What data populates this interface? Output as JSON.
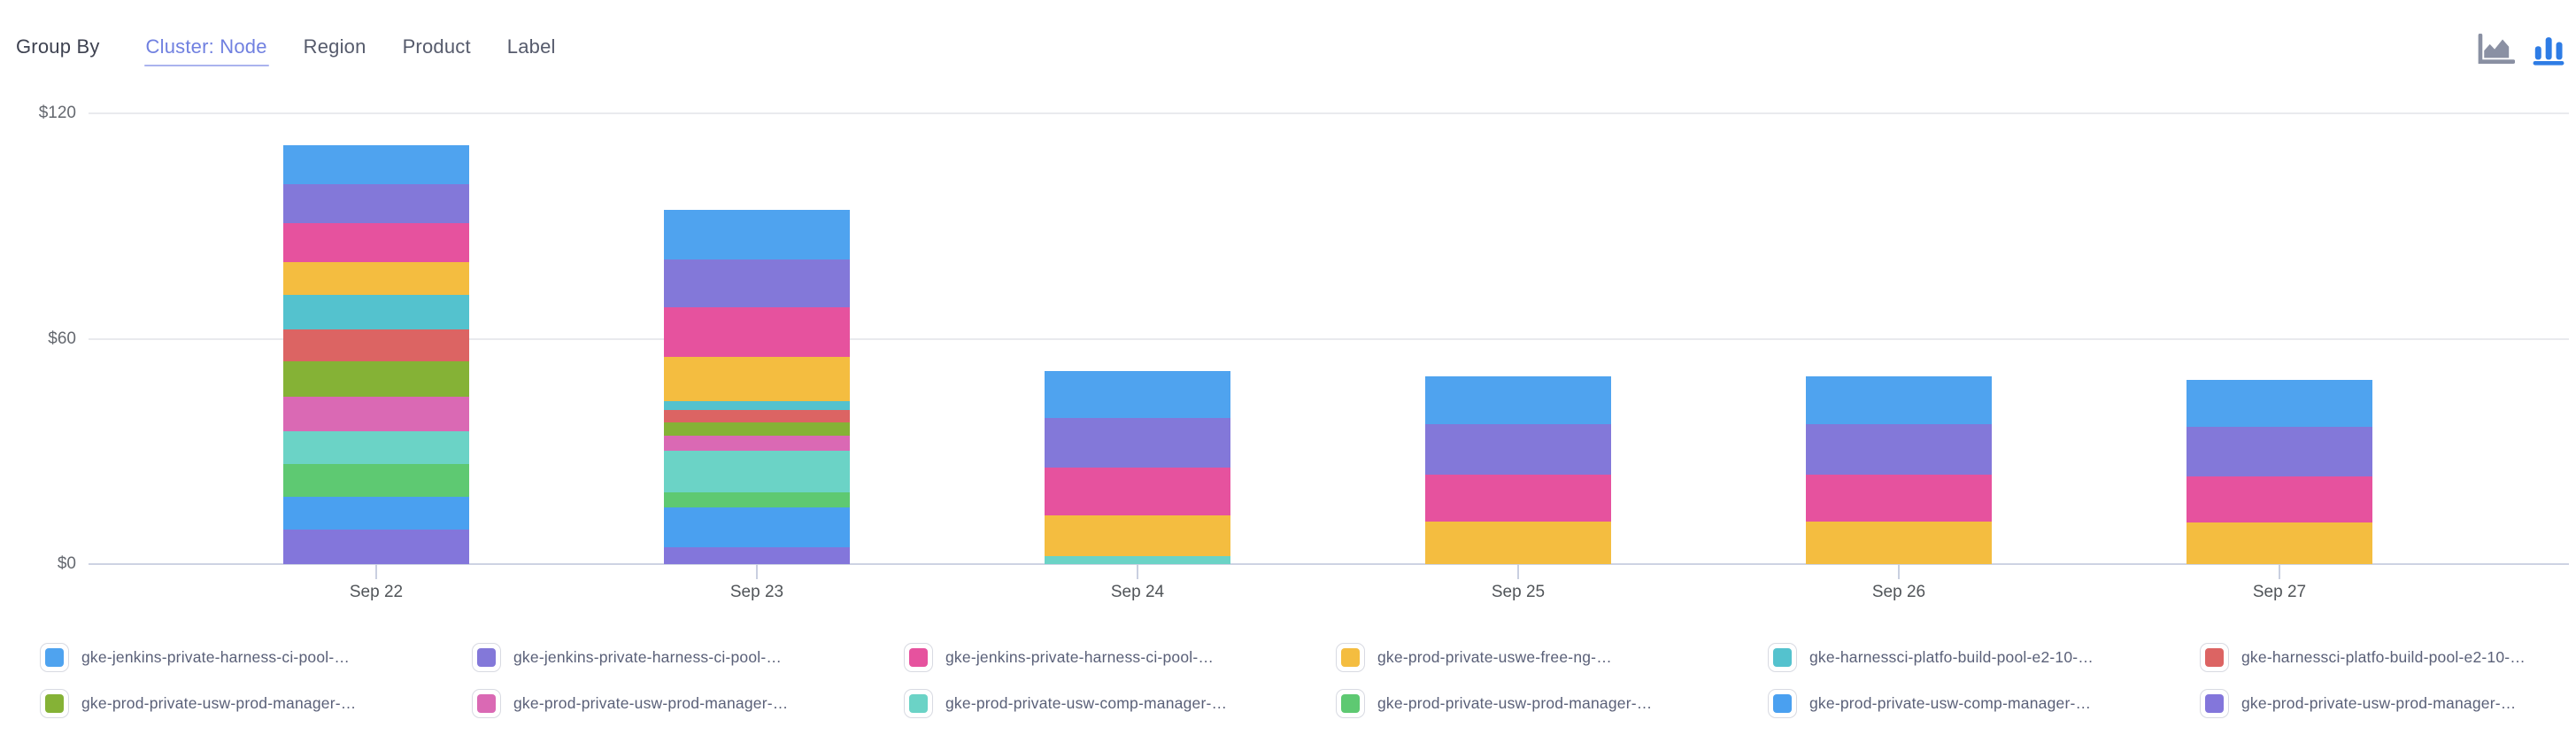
{
  "header": {
    "group_by_label": "Group By",
    "tabs": [
      {
        "label": "Cluster: Node",
        "active": true
      },
      {
        "label": "Region",
        "active": false
      },
      {
        "label": "Product",
        "active": false
      },
      {
        "label": "Label",
        "active": false
      }
    ],
    "chart_type_icons": [
      {
        "name": "area-chart-icon",
        "active": false,
        "color": "#8a90a3"
      },
      {
        "name": "bar-chart-icon",
        "active": true,
        "color": "#2e7ce5"
      }
    ]
  },
  "colors": {
    "active_tab": "#7080e0",
    "active_tab_underline": "#aab3ee",
    "inactive_tab_text": "#565b6c",
    "group_by_text": "#3e4250",
    "y_label_text": "#64686f",
    "x_label_text": "#515559",
    "legend_text": "#5a6078",
    "gridline": "#e9eaee",
    "axis_line": "#cdd3e3"
  },
  "chart_data": {
    "type": "bar",
    "stacked": true,
    "grid": "horizontal",
    "legend_position": "bottom",
    "currency_prefix": "$",
    "categories": [
      "Sep 22",
      "Sep 23",
      "Sep 24",
      "Sep 25",
      "Sep 26",
      "Sep 27"
    ],
    "y_ticks": [
      0,
      60,
      120
    ],
    "y_tick_labels": [
      "$0",
      "$60",
      "$120"
    ],
    "ylim": [
      0,
      120
    ],
    "series": [
      {
        "name": "gke-jenkins-private-harness-ci-pool-…",
        "color": "#4fa3ef",
        "values": [
          10.4,
          13.2,
          12.7,
          12.7,
          12.7,
          12.5
        ]
      },
      {
        "name": "gke-jenkins-private-harness-ci-pool-…",
        "color": "#8378d9",
        "values": [
          10.4,
          12.7,
          13.2,
          13.4,
          13.4,
          13.2
        ]
      },
      {
        "name": "gke-jenkins-private-harness-ci-pool-…",
        "color": "#e6529e",
        "values": [
          10.4,
          13.2,
          12.7,
          12.5,
          12.5,
          12.3
        ]
      },
      {
        "name": "gke-prod-private-uswe-free-ng-…",
        "color": "#f4bd40",
        "values": [
          8.7,
          11.8,
          10.8,
          11.3,
          11.3,
          11.1
        ]
      },
      {
        "name": "gke-harnessci-platfo-build-pool-e2-10-…",
        "color": "#54c2ce",
        "values": [
          9.2,
          2.4,
          0,
          0,
          0,
          0
        ]
      },
      {
        "name": "gke-harnessci-platfo-build-pool-e2-10-…",
        "color": "#dc6463",
        "values": [
          8.5,
          3.3,
          0,
          0,
          0,
          0
        ]
      },
      {
        "name": "gke-prod-private-usw-prod-manager-…",
        "color": "#85b236",
        "values": [
          9.4,
          3.5,
          0,
          0,
          0,
          0
        ]
      },
      {
        "name": "gke-prod-private-usw-prod-manager-…",
        "color": "#da69b4",
        "values": [
          9.2,
          4.0,
          0,
          0,
          0,
          0
        ]
      },
      {
        "name": "gke-prod-private-usw-comp-manager-…",
        "color": "#6bd3c6",
        "values": [
          8.7,
          11.1,
          2.1,
          0,
          0,
          0
        ]
      },
      {
        "name": "gke-prod-private-usw-prod-manager-…",
        "color": "#5ec972",
        "values": [
          8.7,
          4.0,
          0,
          0,
          0,
          0
        ]
      },
      {
        "name": "gke-prod-private-usw-comp-manager-…",
        "color": "#4aa0f0",
        "values": [
          8.7,
          10.6,
          0,
          0,
          0,
          0
        ]
      },
      {
        "name": "gke-prod-private-usw-prod-manager-…",
        "color": "#8376db",
        "values": [
          9.2,
          4.5,
          0,
          0,
          0,
          0
        ]
      }
    ],
    "stack_totals": [
      111.5,
      94.3,
      51.5,
      49.9,
      49.9,
      49.1
    ]
  }
}
